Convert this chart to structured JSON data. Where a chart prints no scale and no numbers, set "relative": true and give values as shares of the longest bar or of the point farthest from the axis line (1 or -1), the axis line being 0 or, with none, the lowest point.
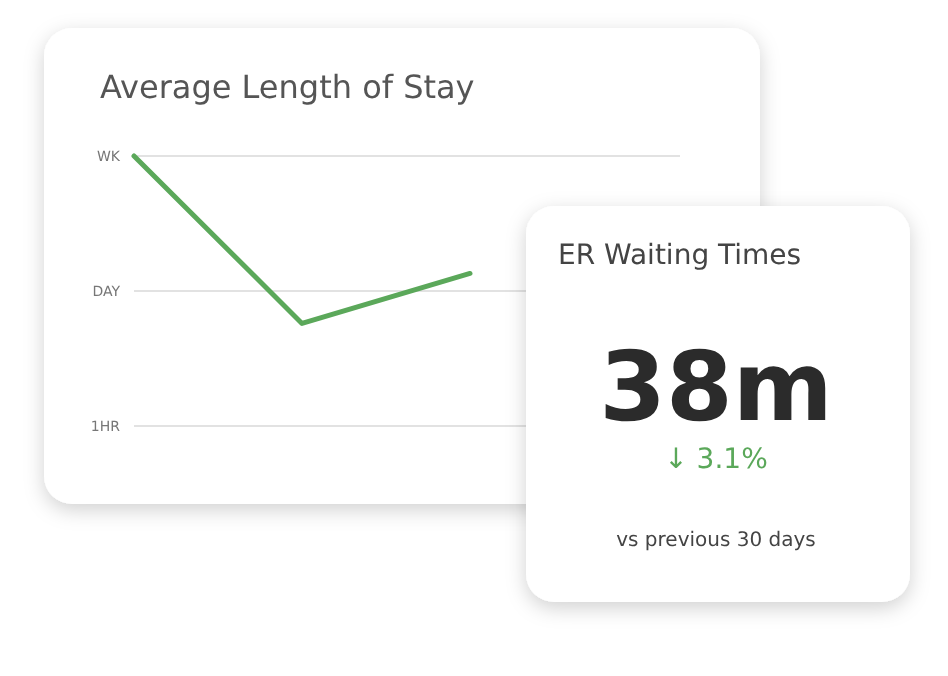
{
  "chart_data": [
    {
      "type": "line",
      "title": "Average Length of Stay",
      "categories": [
        null,
        null,
        null
      ],
      "relative": true,
      "series": [
        {
          "color": "#5ba85a",
          "values": [
            1,
            0.38,
            0.565
          ]
        }
      ],
      "ref_lines": [
        {
          "axis": "y",
          "value": 1,
          "label": "WK",
          "color": "#e2e2e2"
        },
        {
          "axis": "y",
          "value": 0.5,
          "label": "DAY",
          "color": "#e2e2e2"
        },
        {
          "axis": "y",
          "value": 0,
          "label": "1HR",
          "color": "#e2e2e2"
        }
      ],
      "marker": "none",
      "line_style": "solid"
    },
    {
      "type": "other",
      "title": "ER Waiting Times",
      "annotations": [
        "38m",
        "↓ 3.1%",
        "vs previous 30 days"
      ]
    }
  ]
}
